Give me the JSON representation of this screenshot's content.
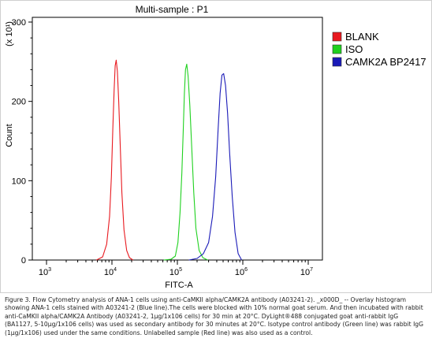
{
  "chart_data": {
    "type": "line",
    "title": "Multi-sample : P1",
    "xlabel": "FITC-A",
    "ylabel": "Count",
    "y_multiplier": "(x 10¹)",
    "x_scale": "log",
    "xlim": [
      1000,
      10000000
    ],
    "ylim": [
      0,
      300
    ],
    "x_ticks": [
      {
        "base": "10",
        "exp": "3",
        "value": 1000
      },
      {
        "base": "10",
        "exp": "4",
        "value": 10000
      },
      {
        "base": "10",
        "exp": "5",
        "value": 100000
      },
      {
        "base": "10",
        "exp": "6",
        "value": 1000000
      },
      {
        "base": "10",
        "exp": "7",
        "value": 10000000
      }
    ],
    "y_ticks": [
      0,
      100,
      200,
      300
    ],
    "legend_position": "right",
    "series": [
      {
        "name": "BLANK",
        "color": "#e8191f",
        "x": [
          5800,
          7200,
          8300,
          9200,
          9800,
          10300,
          10800,
          11200,
          11600,
          12100,
          12700,
          13400,
          14200,
          15300,
          16800,
          18500,
          21000
        ],
        "y": [
          0,
          4,
          20,
          55,
          105,
          165,
          215,
          245,
          252,
          238,
          200,
          145,
          85,
          38,
          12,
          3,
          0
        ]
      },
      {
        "name": "ISO",
        "color": "#1fd11f",
        "x": [
          62000,
          80000,
          93000,
          102000,
          110000,
          117000,
          123000,
          128000,
          133000,
          139000,
          146000,
          155000,
          166000,
          178000,
          192000,
          215000,
          245000,
          290000
        ],
        "y": [
          0,
          1,
          5,
          22,
          60,
          110,
          165,
          210,
          240,
          247,
          232,
          195,
          140,
          85,
          40,
          12,
          3,
          0
        ]
      },
      {
        "name": "CAMK2A BP2417",
        "color": "#1a1ab8",
        "x": [
          150000,
          200000,
          250000,
          300000,
          345000,
          385000,
          420000,
          450000,
          480000,
          510000,
          545000,
          585000,
          630000,
          690000,
          760000,
          850000,
          960000
        ],
        "y": [
          0,
          2,
          8,
          22,
          55,
          105,
          165,
          210,
          233,
          235,
          220,
          185,
          135,
          80,
          35,
          8,
          0
        ]
      }
    ]
  },
  "caption": "Figure 3. Flow Cytometry analysis of ANA-1 cells using anti-CaMKII alpha/CAMK2A antibody (A03241-2). _x000D_ -- Overlay histogram showing ANA-1 cells stained with A03241-2 (Blue line).The cells were blocked with 10% normal goat serum. And then incubated with rabbit anti-CaMKII alpha/CAMK2A Antibody (A03241-2, 1μg/1x106 cells) for 30 min at 20°C. DyLight®488 conjugated goat anti-rabbit IgG (BA1127, 5-10μg/1x106 cells) was used as secondary antibody for 30 minutes at 20°C. Isotype control antibody (Green line) was rabbit IgG (1μg/1x106) used under the same conditions. Unlabelled sample (Red line) was also used as a control."
}
